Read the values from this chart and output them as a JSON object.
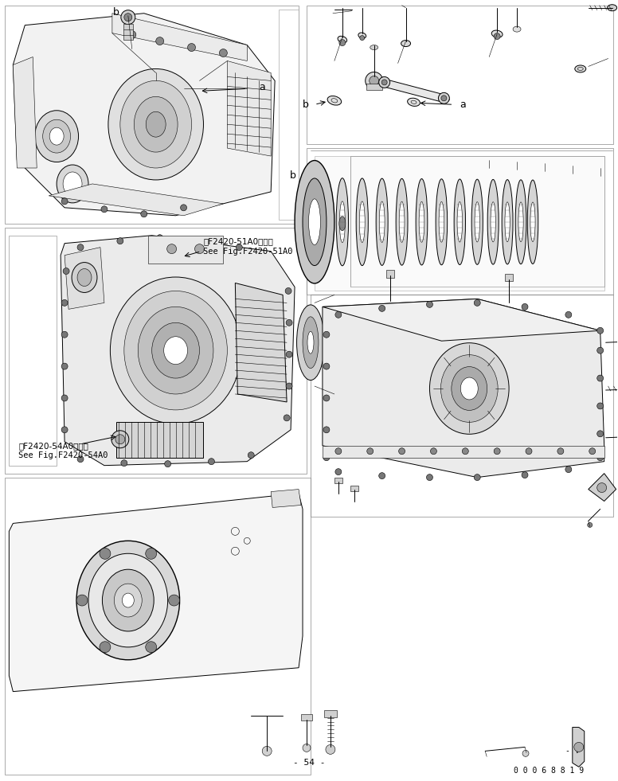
{
  "bg_color": "#ffffff",
  "line_color": "#000000",
  "fig_width": 7.76,
  "fig_height": 9.81,
  "dpi": 100,
  "ann_51a0_jp": "第F2420-51A0図参照",
  "ann_51a0_en": "See Fig.F2420-51A0",
  "ann_54a0_jp": "第F2420-54A0図参照",
  "ann_54a0_en": "See Fig.F2420-54A0",
  "page_label": "- 54 -",
  "part_number": "0 0 0 6 8 8 1 9",
  "dash_label": "- ."
}
